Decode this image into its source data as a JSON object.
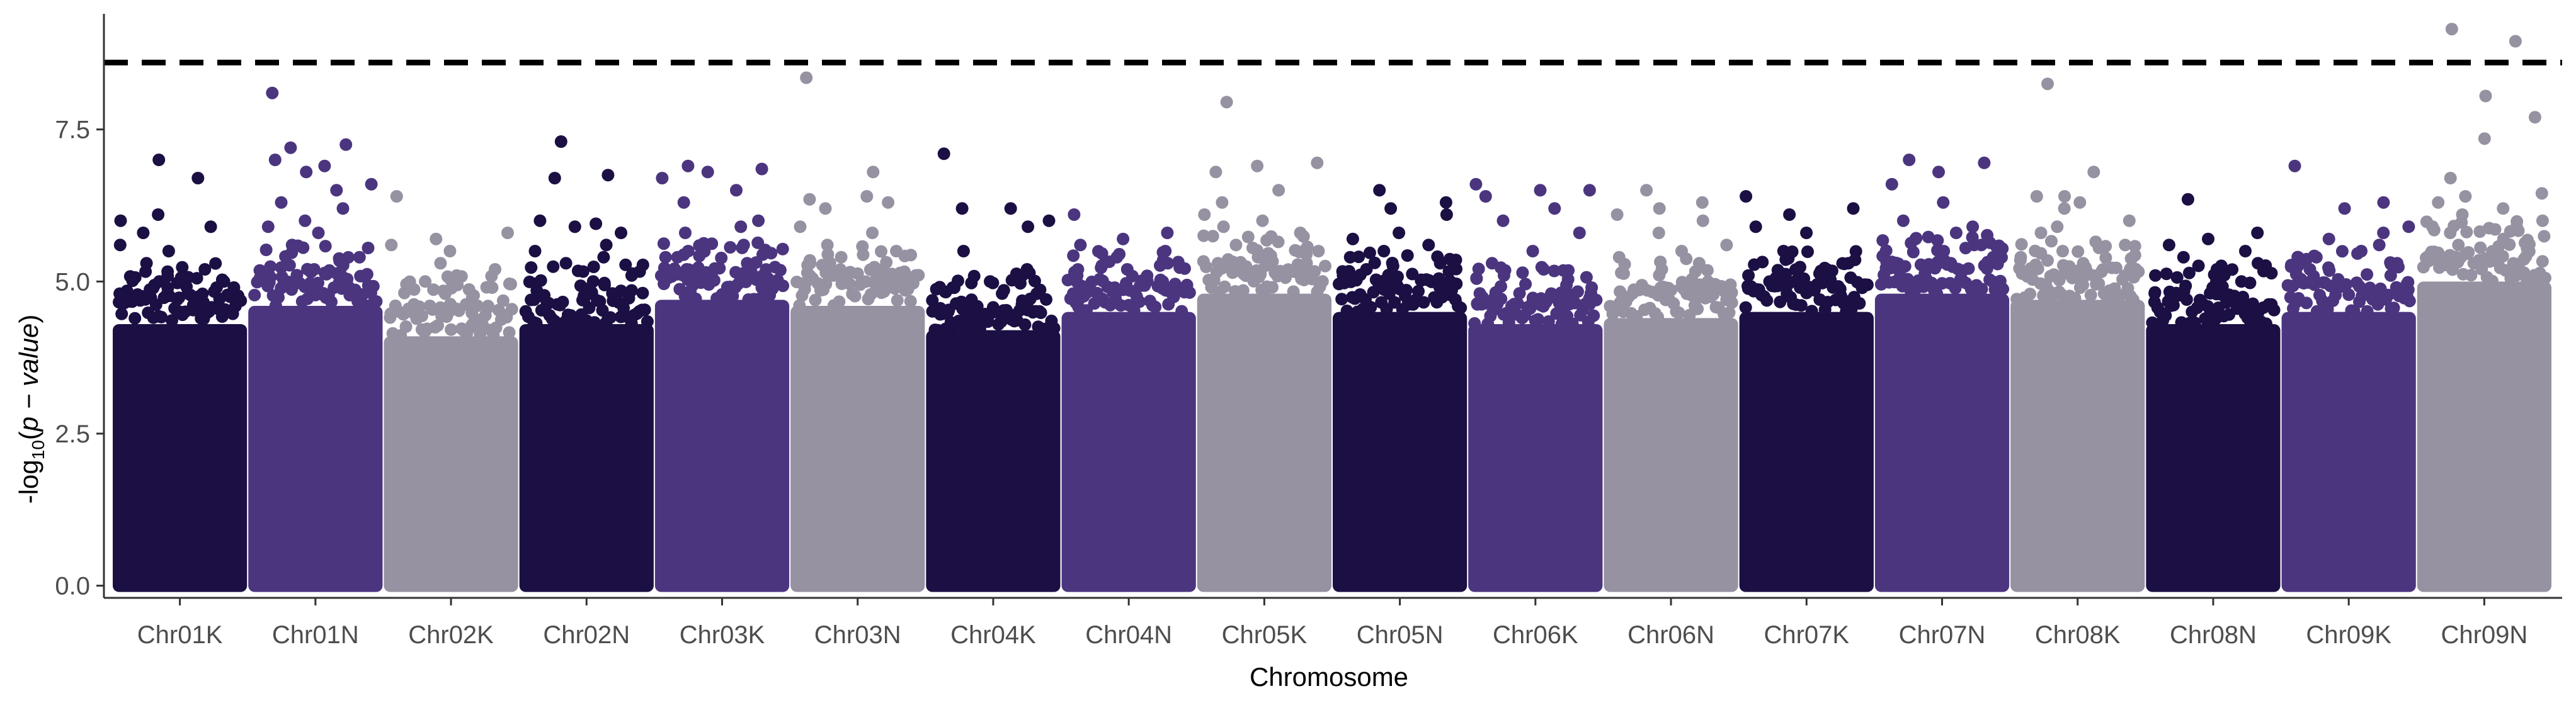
{
  "chart_data": {
    "type": "scatter",
    "subtype": "manhattan",
    "title": "",
    "xlabel": "Chromosome",
    "ylabel": {
      "prefix": "-log",
      "subscript": "10",
      "open": "(",
      "italic": "p − value",
      "close": ")"
    },
    "ylim": [
      -0.2,
      9.4
    ],
    "yticks": [
      0.0,
      2.5,
      5.0,
      7.5
    ],
    "ytick_labels": [
      "0.0",
      "2.5",
      "5.0",
      "7.5"
    ],
    "threshold": {
      "value": 8.6,
      "style": "dashed",
      "color": "#000000"
    },
    "palette": [
      "#1b0f43",
      "#4b357f",
      "#9692a2"
    ],
    "grid": false,
    "legend": "none",
    "chromosomes": [
      {
        "name": "Chr01K",
        "color_index": 0,
        "bulk_top": 4.3,
        "top_points": [
          7.0,
          6.7,
          6.1,
          6.0,
          5.9,
          5.8,
          5.6,
          5.5,
          5.3,
          5.2,
          5.0,
          4.9
        ]
      },
      {
        "name": "Chr01N",
        "color_index": 1,
        "bulk_top": 4.6,
        "top_points": [
          8.1,
          7.25,
          7.2,
          7.0,
          6.9,
          6.8,
          6.6,
          6.5,
          6.3,
          6.2,
          6.0,
          5.9,
          5.8,
          5.6,
          5.4,
          5.2
        ]
      },
      {
        "name": "Chr02K",
        "color_index": 2,
        "bulk_top": 4.1,
        "top_points": [
          6.4,
          5.8,
          5.7,
          5.6,
          5.5,
          5.3,
          5.2,
          5.1,
          5.0,
          4.9,
          4.8
        ]
      },
      {
        "name": "Chr02N",
        "color_index": 0,
        "bulk_top": 4.3,
        "top_points": [
          7.3,
          6.75,
          6.7,
          6.0,
          5.95,
          5.9,
          5.8,
          5.6,
          5.5,
          5.4,
          5.3,
          5.1,
          5.0
        ]
      },
      {
        "name": "Chr03K",
        "color_index": 1,
        "bulk_top": 4.7,
        "top_points": [
          6.9,
          6.85,
          6.8,
          6.7,
          6.5,
          6.3,
          6.0,
          5.9,
          5.8,
          5.6,
          5.5,
          5.4,
          5.3,
          5.2
        ]
      },
      {
        "name": "Chr03N",
        "color_index": 2,
        "bulk_top": 4.6,
        "top_points": [
          8.35,
          6.8,
          6.4,
          6.35,
          6.3,
          6.2,
          5.9,
          5.8,
          5.6,
          5.5,
          5.4,
          5.3,
          5.2,
          5.1
        ]
      },
      {
        "name": "Chr04K",
        "color_index": 0,
        "bulk_top": 4.2,
        "top_points": [
          7.1,
          6.2,
          6.2,
          6.0,
          5.9,
          5.5,
          5.2,
          5.0,
          4.9,
          4.8,
          4.7
        ]
      },
      {
        "name": "Chr04N",
        "color_index": 1,
        "bulk_top": 4.5,
        "top_points": [
          6.1,
          5.8,
          5.7,
          5.6,
          5.5,
          5.4,
          5.3,
          5.2,
          5.1,
          5.0,
          4.9
        ]
      },
      {
        "name": "Chr05K",
        "color_index": 2,
        "bulk_top": 4.8,
        "top_points": [
          7.95,
          6.95,
          6.9,
          6.8,
          6.5,
          6.3,
          6.1,
          6.0,
          5.9,
          5.8,
          5.6,
          5.5,
          5.4,
          5.3
        ]
      },
      {
        "name": "Chr05N",
        "color_index": 0,
        "bulk_top": 4.5,
        "top_points": [
          6.5,
          6.3,
          6.2,
          6.1,
          5.8,
          5.7,
          5.6,
          5.5,
          5.4,
          5.3,
          5.2,
          5.1
        ]
      },
      {
        "name": "Chr06K",
        "color_index": 1,
        "bulk_top": 4.3,
        "top_points": [
          6.6,
          6.5,
          6.5,
          6.4,
          6.2,
          6.0,
          5.8,
          5.5,
          5.3,
          5.2,
          5.1,
          4.9
        ]
      },
      {
        "name": "Chr06N",
        "color_index": 2,
        "bulk_top": 4.4,
        "top_points": [
          6.5,
          6.3,
          6.2,
          6.1,
          6.0,
          5.8,
          5.6,
          5.5,
          5.4,
          5.3,
          5.2,
          5.0
        ]
      },
      {
        "name": "Chr07K",
        "color_index": 0,
        "bulk_top": 4.5,
        "top_points": [
          6.4,
          6.2,
          6.1,
          5.9,
          5.8,
          5.5,
          5.3,
          5.2,
          5.1,
          5.0,
          4.9
        ]
      },
      {
        "name": "Chr07N",
        "color_index": 1,
        "bulk_top": 4.8,
        "top_points": [
          7.0,
          6.95,
          6.8,
          6.6,
          6.3,
          6.0,
          5.9,
          5.8,
          5.7,
          5.6,
          5.5,
          5.4,
          5.3,
          5.2
        ]
      },
      {
        "name": "Chr08K",
        "color_index": 2,
        "bulk_top": 4.7,
        "top_points": [
          8.25,
          6.8,
          6.4,
          6.4,
          6.3,
          6.2,
          6.0,
          5.9,
          5.8,
          5.6,
          5.5,
          5.4,
          5.3
        ]
      },
      {
        "name": "Chr08N",
        "color_index": 0,
        "bulk_top": 4.3,
        "top_points": [
          6.35,
          5.8,
          5.7,
          5.6,
          5.5,
          5.4,
          5.3,
          5.2,
          5.1,
          5.0,
          4.9
        ]
      },
      {
        "name": "Chr09K",
        "color_index": 1,
        "bulk_top": 4.5,
        "top_points": [
          6.9,
          6.3,
          6.2,
          5.9,
          5.8,
          5.7,
          5.6,
          5.5,
          5.4,
          5.3,
          5.2,
          5.1
        ]
      },
      {
        "name": "Chr09N",
        "color_index": 2,
        "bulk_top": 5.0,
        "top_points": [
          9.15,
          8.95,
          8.05,
          7.7,
          7.35,
          6.7,
          6.45,
          6.4,
          6.3,
          6.2,
          6.1,
          6.0,
          5.9,
          5.8,
          5.7,
          5.6
        ]
      }
    ]
  }
}
